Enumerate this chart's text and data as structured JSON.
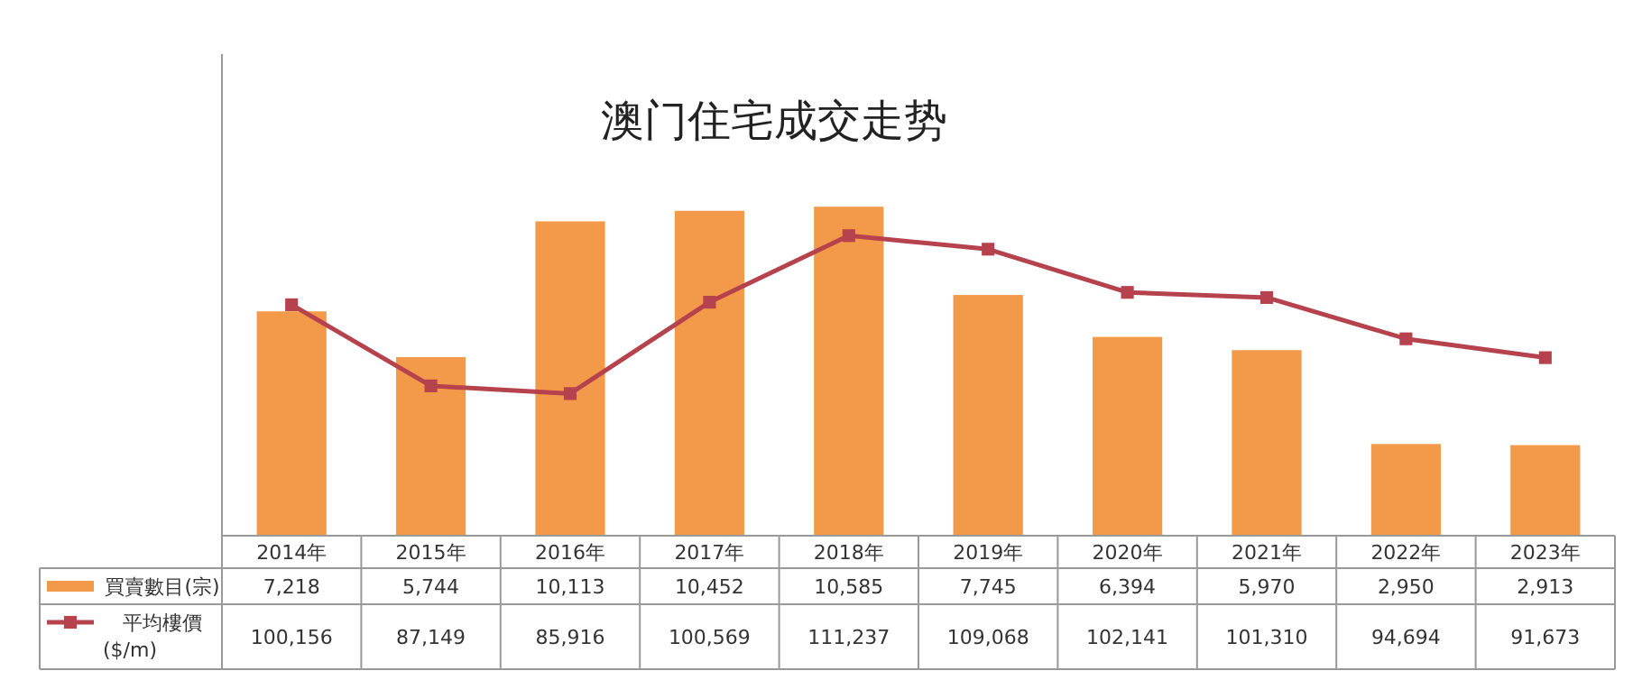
{
  "chart_data": {
    "type": "bar",
    "title": "澳门住宅成交走势",
    "categories": [
      "2014年",
      "2015年",
      "2016年",
      "2017年",
      "2018年",
      "2019年",
      "2020年",
      "2021年",
      "2022年",
      "2023年"
    ],
    "series": [
      {
        "name": "買賣數目(宗)",
        "color": "#f2994a",
        "values": [
          7218,
          5744,
          10113,
          10452,
          10585,
          7745,
          6394,
          5970,
          2950,
          2913
        ],
        "value_labels": [
          "7,218",
          "5,744",
          "10,113",
          "10,452",
          "10,585",
          "7,745",
          "6,394",
          "5,970",
          "2,950",
          "2,913"
        ]
      },
      {
        "name": "平均樓價 ($/m)",
        "type": "line",
        "axis": "y2",
        "color": "#b5424c",
        "values": [
          100156,
          87149,
          85916,
          100569,
          111237,
          109068,
          102141,
          101310,
          94694,
          91673
        ],
        "value_labels": [
          "100,156",
          "87,149",
          "85,916",
          "100,569",
          "111,237",
          "109,068",
          "102,141",
          "101,310",
          "94,694",
          "91,673"
        ]
      }
    ],
    "marker": "square",
    "legend": "bottom",
    "grid": false
  }
}
